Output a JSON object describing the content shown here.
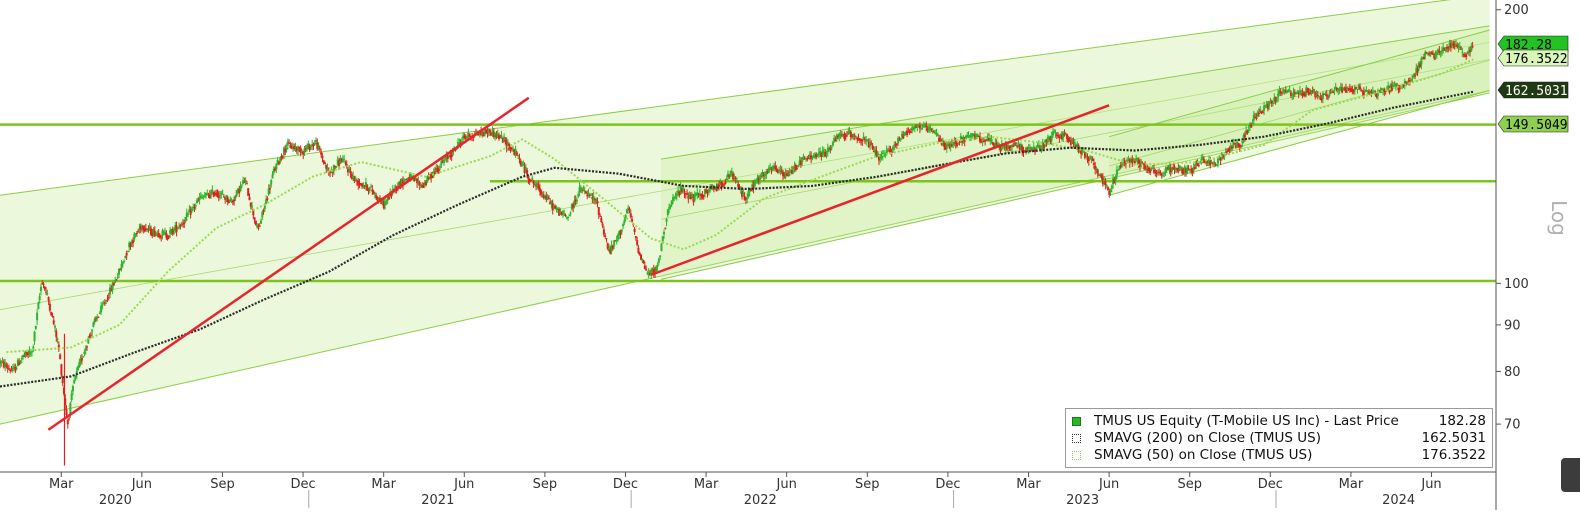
{
  "chart_data": {
    "type": "candlestick",
    "scale": "Log",
    "ticker": "TMUS US",
    "y_axis": {
      "ticks": [
        70,
        80,
        90,
        100,
        200
      ],
      "range": [
        62,
        205
      ]
    },
    "x_axis": {
      "month_ticks": [
        {
          "label": "Mar",
          "year_frac": 2020.17
        },
        {
          "label": "Jun",
          "year_frac": 2020.42
        },
        {
          "label": "Sep",
          "year_frac": 2020.67
        },
        {
          "label": "Dec",
          "year_frac": 2020.92
        },
        {
          "label": "Mar",
          "year_frac": 2021.17
        },
        {
          "label": "Jun",
          "year_frac": 2021.42
        },
        {
          "label": "Sep",
          "year_frac": 2021.67
        },
        {
          "label": "Dec",
          "year_frac": 2021.92
        },
        {
          "label": "Mar",
          "year_frac": 2022.17
        },
        {
          "label": "Jun",
          "year_frac": 2022.42
        },
        {
          "label": "Sep",
          "year_frac": 2022.67
        },
        {
          "label": "Dec",
          "year_frac": 2022.92
        },
        {
          "label": "Mar",
          "year_frac": 2023.17
        },
        {
          "label": "Jun",
          "year_frac": 2023.42
        },
        {
          "label": "Sep",
          "year_frac": 2023.67
        },
        {
          "label": "Dec",
          "year_frac": 2023.92
        },
        {
          "label": "Mar",
          "year_frac": 2024.17
        },
        {
          "label": "Jun",
          "year_frac": 2024.42
        }
      ],
      "year_labels": [
        {
          "label": "2020",
          "year_frac": 2020.4
        },
        {
          "label": "2021",
          "year_frac": 2021.4
        },
        {
          "label": "2022",
          "year_frac": 2022.4
        },
        {
          "label": "2023",
          "year_frac": 2023.4
        },
        {
          "label": "2024",
          "year_frac": 2024.38
        }
      ],
      "range": [
        2019.98,
        2024.62
      ]
    },
    "price_points": [
      [
        2019.98,
        82
      ],
      [
        2020.02,
        80
      ],
      [
        2020.05,
        83
      ],
      [
        2020.08,
        84
      ],
      [
        2020.11,
        101
      ],
      [
        2020.13,
        96
      ],
      [
        2020.16,
        86
      ],
      [
        2020.19,
        70
      ],
      [
        2020.21,
        78
      ],
      [
        2020.24,
        84
      ],
      [
        2020.27,
        90
      ],
      [
        2020.31,
        96
      ],
      [
        2020.35,
        103
      ],
      [
        2020.38,
        110
      ],
      [
        2020.42,
        116
      ],
      [
        2020.45,
        114
      ],
      [
        2020.5,
        113
      ],
      [
        2020.55,
        117
      ],
      [
        2020.6,
        124
      ],
      [
        2020.65,
        126
      ],
      [
        2020.7,
        123
      ],
      [
        2020.74,
        130
      ],
      [
        2020.78,
        114
      ],
      [
        2020.83,
        133
      ],
      [
        2020.87,
        142
      ],
      [
        2020.92,
        140
      ],
      [
        2020.96,
        143
      ],
      [
        2021.0,
        132
      ],
      [
        2021.04,
        137
      ],
      [
        2021.08,
        130
      ],
      [
        2021.13,
        127
      ],
      [
        2021.17,
        122
      ],
      [
        2021.21,
        128
      ],
      [
        2021.25,
        131
      ],
      [
        2021.29,
        128
      ],
      [
        2021.33,
        133
      ],
      [
        2021.38,
        139
      ],
      [
        2021.42,
        145
      ],
      [
        2021.46,
        146
      ],
      [
        2021.5,
        147
      ],
      [
        2021.54,
        144
      ],
      [
        2021.58,
        139
      ],
      [
        2021.62,
        131
      ],
      [
        2021.66,
        126
      ],
      [
        2021.7,
        121
      ],
      [
        2021.74,
        118
      ],
      [
        2021.78,
        127
      ],
      [
        2021.83,
        123
      ],
      [
        2021.87,
        108
      ],
      [
        2021.9,
        113
      ],
      [
        2021.93,
        121
      ],
      [
        2021.96,
        109
      ],
      [
        2021.99,
        102
      ],
      [
        2022.02,
        104
      ],
      [
        2022.05,
        120
      ],
      [
        2022.09,
        127
      ],
      [
        2022.13,
        124
      ],
      [
        2022.17,
        126
      ],
      [
        2022.21,
        128
      ],
      [
        2022.25,
        132
      ],
      [
        2022.29,
        124
      ],
      [
        2022.33,
        130
      ],
      [
        2022.38,
        134
      ],
      [
        2022.42,
        131
      ],
      [
        2022.46,
        136
      ],
      [
        2022.5,
        138
      ],
      [
        2022.54,
        139
      ],
      [
        2022.58,
        145
      ],
      [
        2022.62,
        146
      ],
      [
        2022.67,
        143
      ],
      [
        2022.71,
        137
      ],
      [
        2022.75,
        141
      ],
      [
        2022.79,
        147
      ],
      [
        2022.83,
        149
      ],
      [
        2022.87,
        147
      ],
      [
        2022.92,
        141
      ],
      [
        2022.96,
        144
      ],
      [
        2023.0,
        145
      ],
      [
        2023.04,
        144
      ],
      [
        2023.08,
        141
      ],
      [
        2023.13,
        142
      ],
      [
        2023.17,
        140
      ],
      [
        2023.21,
        141
      ],
      [
        2023.25,
        146
      ],
      [
        2023.29,
        145
      ],
      [
        2023.33,
        140
      ],
      [
        2023.37,
        136
      ],
      [
        2023.4,
        130
      ],
      [
        2023.42,
        126
      ],
      [
        2023.46,
        136
      ],
      [
        2023.5,
        137
      ],
      [
        2023.54,
        134
      ],
      [
        2023.58,
        132
      ],
      [
        2023.62,
        134
      ],
      [
        2023.67,
        133
      ],
      [
        2023.71,
        137
      ],
      [
        2023.75,
        135
      ],
      [
        2023.79,
        141
      ],
      [
        2023.83,
        143
      ],
      [
        2023.87,
        152
      ],
      [
        2023.92,
        158
      ],
      [
        2023.96,
        163
      ],
      [
        2024.0,
        161
      ],
      [
        2024.04,
        163
      ],
      [
        2024.08,
        160
      ],
      [
        2024.12,
        163
      ],
      [
        2024.17,
        164
      ],
      [
        2024.21,
        163
      ],
      [
        2024.25,
        162
      ],
      [
        2024.29,
        164
      ],
      [
        2024.33,
        165
      ],
      [
        2024.37,
        170
      ],
      [
        2024.4,
        179
      ],
      [
        2024.43,
        178
      ],
      [
        2024.46,
        181
      ],
      [
        2024.49,
        184
      ],
      [
        2024.52,
        178
      ],
      [
        2024.55,
        182.28
      ]
    ],
    "sma200_points": [
      [
        2019.98,
        77
      ],
      [
        2020.2,
        79
      ],
      [
        2020.4,
        84
      ],
      [
        2020.6,
        89
      ],
      [
        2020.8,
        96
      ],
      [
        2021.0,
        103
      ],
      [
        2021.2,
        113
      ],
      [
        2021.4,
        122
      ],
      [
        2021.6,
        131
      ],
      [
        2021.7,
        134
      ],
      [
        2021.9,
        132
      ],
      [
        2022.1,
        128
      ],
      [
        2022.3,
        127
      ],
      [
        2022.5,
        128
      ],
      [
        2022.7,
        131
      ],
      [
        2022.9,
        135
      ],
      [
        2023.1,
        139
      ],
      [
        2023.3,
        141
      ],
      [
        2023.5,
        140
      ],
      [
        2023.7,
        142
      ],
      [
        2023.9,
        145
      ],
      [
        2024.1,
        150
      ],
      [
        2024.3,
        156
      ],
      [
        2024.55,
        162.5
      ]
    ],
    "sma50_points": [
      [
        2020.0,
        84
      ],
      [
        2020.2,
        85
      ],
      [
        2020.35,
        90
      ],
      [
        2020.5,
        103
      ],
      [
        2020.65,
        115
      ],
      [
        2020.8,
        122
      ],
      [
        2020.95,
        131
      ],
      [
        2021.1,
        136
      ],
      [
        2021.3,
        131
      ],
      [
        2021.5,
        138
      ],
      [
        2021.6,
        144
      ],
      [
        2021.7,
        137
      ],
      [
        2021.85,
        124
      ],
      [
        2022.0,
        112
      ],
      [
        2022.1,
        109
      ],
      [
        2022.2,
        113
      ],
      [
        2022.35,
        124
      ],
      [
        2022.5,
        130
      ],
      [
        2022.7,
        138
      ],
      [
        2022.9,
        143
      ],
      [
        2023.05,
        145
      ],
      [
        2023.2,
        143
      ],
      [
        2023.35,
        140
      ],
      [
        2023.5,
        135
      ],
      [
        2023.7,
        136
      ],
      [
        2023.9,
        142
      ],
      [
        2024.05,
        155
      ],
      [
        2024.25,
        162
      ],
      [
        2024.45,
        170
      ],
      [
        2024.55,
        176.35
      ]
    ],
    "horizontal_lines": [
      149.5049,
      129.5,
      100.6
    ],
    "channels": [
      {
        "lower": [
          [
            2019.98,
            70
          ],
          [
            2024.6,
            163
          ]
        ],
        "upper": [
          [
            2019.98,
            125
          ],
          [
            2024.6,
            208
          ]
        ]
      },
      {
        "lower": [
          [
            2022.03,
            101
          ],
          [
            2024.6,
            162
          ]
        ],
        "upper": [
          [
            2022.03,
            137
          ],
          [
            2024.6,
            192
          ]
        ]
      },
      {
        "lower": [
          [
            2023.42,
            125
          ],
          [
            2024.6,
            163
          ]
        ],
        "upper": [
          [
            2023.42,
            145
          ],
          [
            2024.6,
            190
          ]
        ]
      }
    ],
    "trendlines": [
      {
        "from": [
          2020.13,
          69
        ],
        "to": [
          2021.62,
          160
        ]
      },
      {
        "from": [
          2022.0,
          102.2
        ],
        "to": [
          2023.42,
          157
        ]
      }
    ],
    "price_tags": [
      {
        "value": "182.28",
        "y": 182.28,
        "bg": "#22c322",
        "fg": "#000000"
      },
      {
        "value": "176.3522",
        "y": 176.3522,
        "bg": "#d9f5b8",
        "fg": "#000000"
      },
      {
        "value": "162.5031",
        "y": 162.5031,
        "bg": "#1f3a10",
        "fg": "#ffffff"
      },
      {
        "value": "149.5049",
        "y": 149.5049,
        "bg": "#8fd14f",
        "fg": "#000000"
      }
    ],
    "legend": [
      {
        "label": "TMUS US Equity (T-Mobile US Inc) - Last Price",
        "value": "182.28"
      },
      {
        "label": "SMAVG (200)  on Close (TMUS US)",
        "value": "162.5031"
      },
      {
        "label": "SMAVG (50)  on Close (TMUS US)",
        "value": "176.3522"
      }
    ],
    "colors": {
      "up": "#2bb52b",
      "down": "#e0201c",
      "hline": "#7cc41c",
      "channel_fill": "#c8eb9a",
      "channel_line": "#8ccd46",
      "trend": "#e8242c",
      "sma200": "#2a2a2a",
      "sma50": "#9ad94e"
    }
  }
}
